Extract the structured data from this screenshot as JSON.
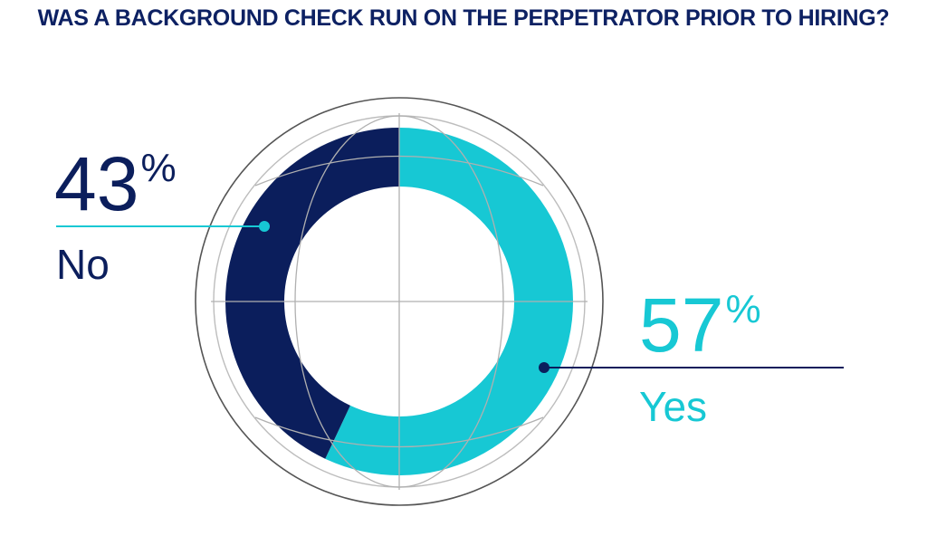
{
  "chart_data": {
    "type": "pie",
    "title": "WAS A BACKGROUND CHECK RUN ON THE PERPETRATOR PRIOR TO HIRING?",
    "categories": [
      "No",
      "Yes"
    ],
    "values": [
      43,
      57
    ],
    "value_labels": [
      "43",
      "57"
    ],
    "unit": "%",
    "colors": [
      "#0b1e5c",
      "#17c8d4"
    ],
    "grid": true
  }
}
